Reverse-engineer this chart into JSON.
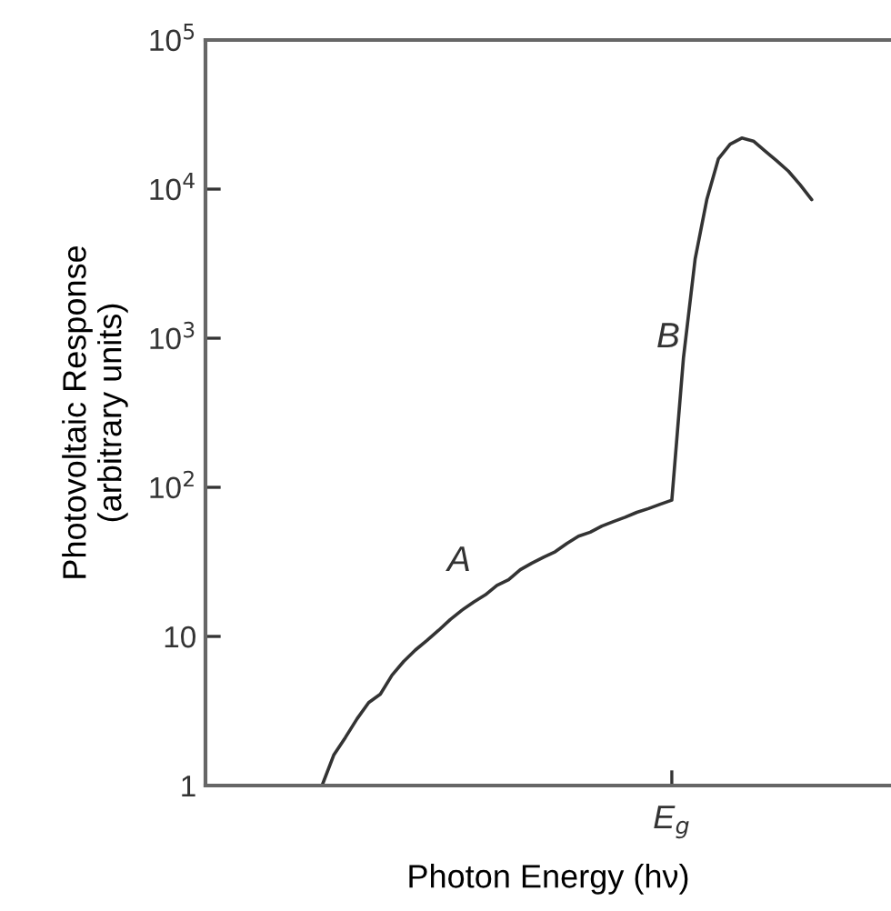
{
  "chart_data": {
    "type": "line",
    "xlabel": "Photon Energy (hν)",
    "ylabel": "Photovoltaic Response\n(arbitrary units)",
    "categories": [
      null,
      null,
      null,
      null,
      null,
      null,
      null,
      null,
      null,
      null,
      null,
      null,
      null,
      null,
      null,
      null,
      null,
      null,
      null,
      null,
      null,
      null,
      null,
      null,
      null,
      null,
      null,
      null,
      null,
      null,
      "E$_{g}$",
      null,
      null,
      null,
      null,
      null,
      null,
      null,
      null,
      null,
      null,
      null,
      null
    ],
    "series": [
      {
        "color": "#333333",
        "values": [
          1,
          1.6,
          2.1,
          2.8,
          3.6,
          4.1,
          5.5,
          6.8,
          8.1,
          9.4,
          11,
          13,
          15,
          17,
          19,
          22,
          24,
          28,
          31,
          34,
          37,
          42,
          47,
          50,
          55,
          59,
          63,
          68,
          72,
          77,
          82,
          740,
          3400,
          8500,
          16000,
          20000,
          22000,
          21000,
          18000,
          15500,
          13200,
          10700,
          8500
        ]
      }
    ],
    "log": "y",
    "ylim": [
      1,
      100000
    ],
    "yticks": [
      {
        "value": 1,
        "label": "1"
      },
      {
        "value": 10,
        "label": "10"
      },
      {
        "value": 100,
        "label": "10$^{2}$"
      },
      {
        "value": 1000,
        "label": "10$^{3}$"
      },
      {
        "value": 10000,
        "label": "10$^{4}$"
      },
      {
        "value": 100000,
        "label": "10$^{5}$"
      }
    ],
    "annotations": [
      "A",
      "B"
    ],
    "grid": false,
    "marker": "none",
    "line_style": "solid"
  }
}
